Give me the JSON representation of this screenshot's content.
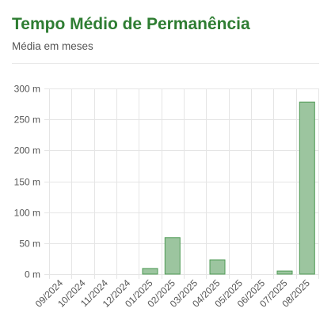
{
  "header": {
    "title": "Tempo Médio de Permanência",
    "subtitle": "Média em meses"
  },
  "colors": {
    "title": "#2e7d32",
    "bar_fill": "#9cc59f",
    "bar_stroke": "#4e9a54",
    "grid": "#e5e5e5",
    "axis_text": "#555555"
  },
  "chart_data": {
    "type": "bar",
    "title": "Tempo Médio de Permanência",
    "subtitle": "Média em meses",
    "categories": [
      "09/2024",
      "10/2024",
      "11/2024",
      "12/2024",
      "01/2025",
      "02/2025",
      "03/2025",
      "04/2025",
      "05/2025",
      "06/2025",
      "07/2025",
      "08/2025"
    ],
    "values": [
      0,
      0,
      0,
      0,
      9,
      59,
      0,
      23,
      0,
      0,
      5,
      278
    ],
    "y_unit": "m",
    "y_ticks": [
      0,
      50,
      100,
      150,
      200,
      250,
      300
    ],
    "y_tick_labels": [
      "0 m",
      "50 m",
      "100 m",
      "150 m",
      "200 m",
      "250 m",
      "300 m"
    ],
    "ylim": [
      0,
      300
    ],
    "grid": true,
    "legend": "none"
  }
}
